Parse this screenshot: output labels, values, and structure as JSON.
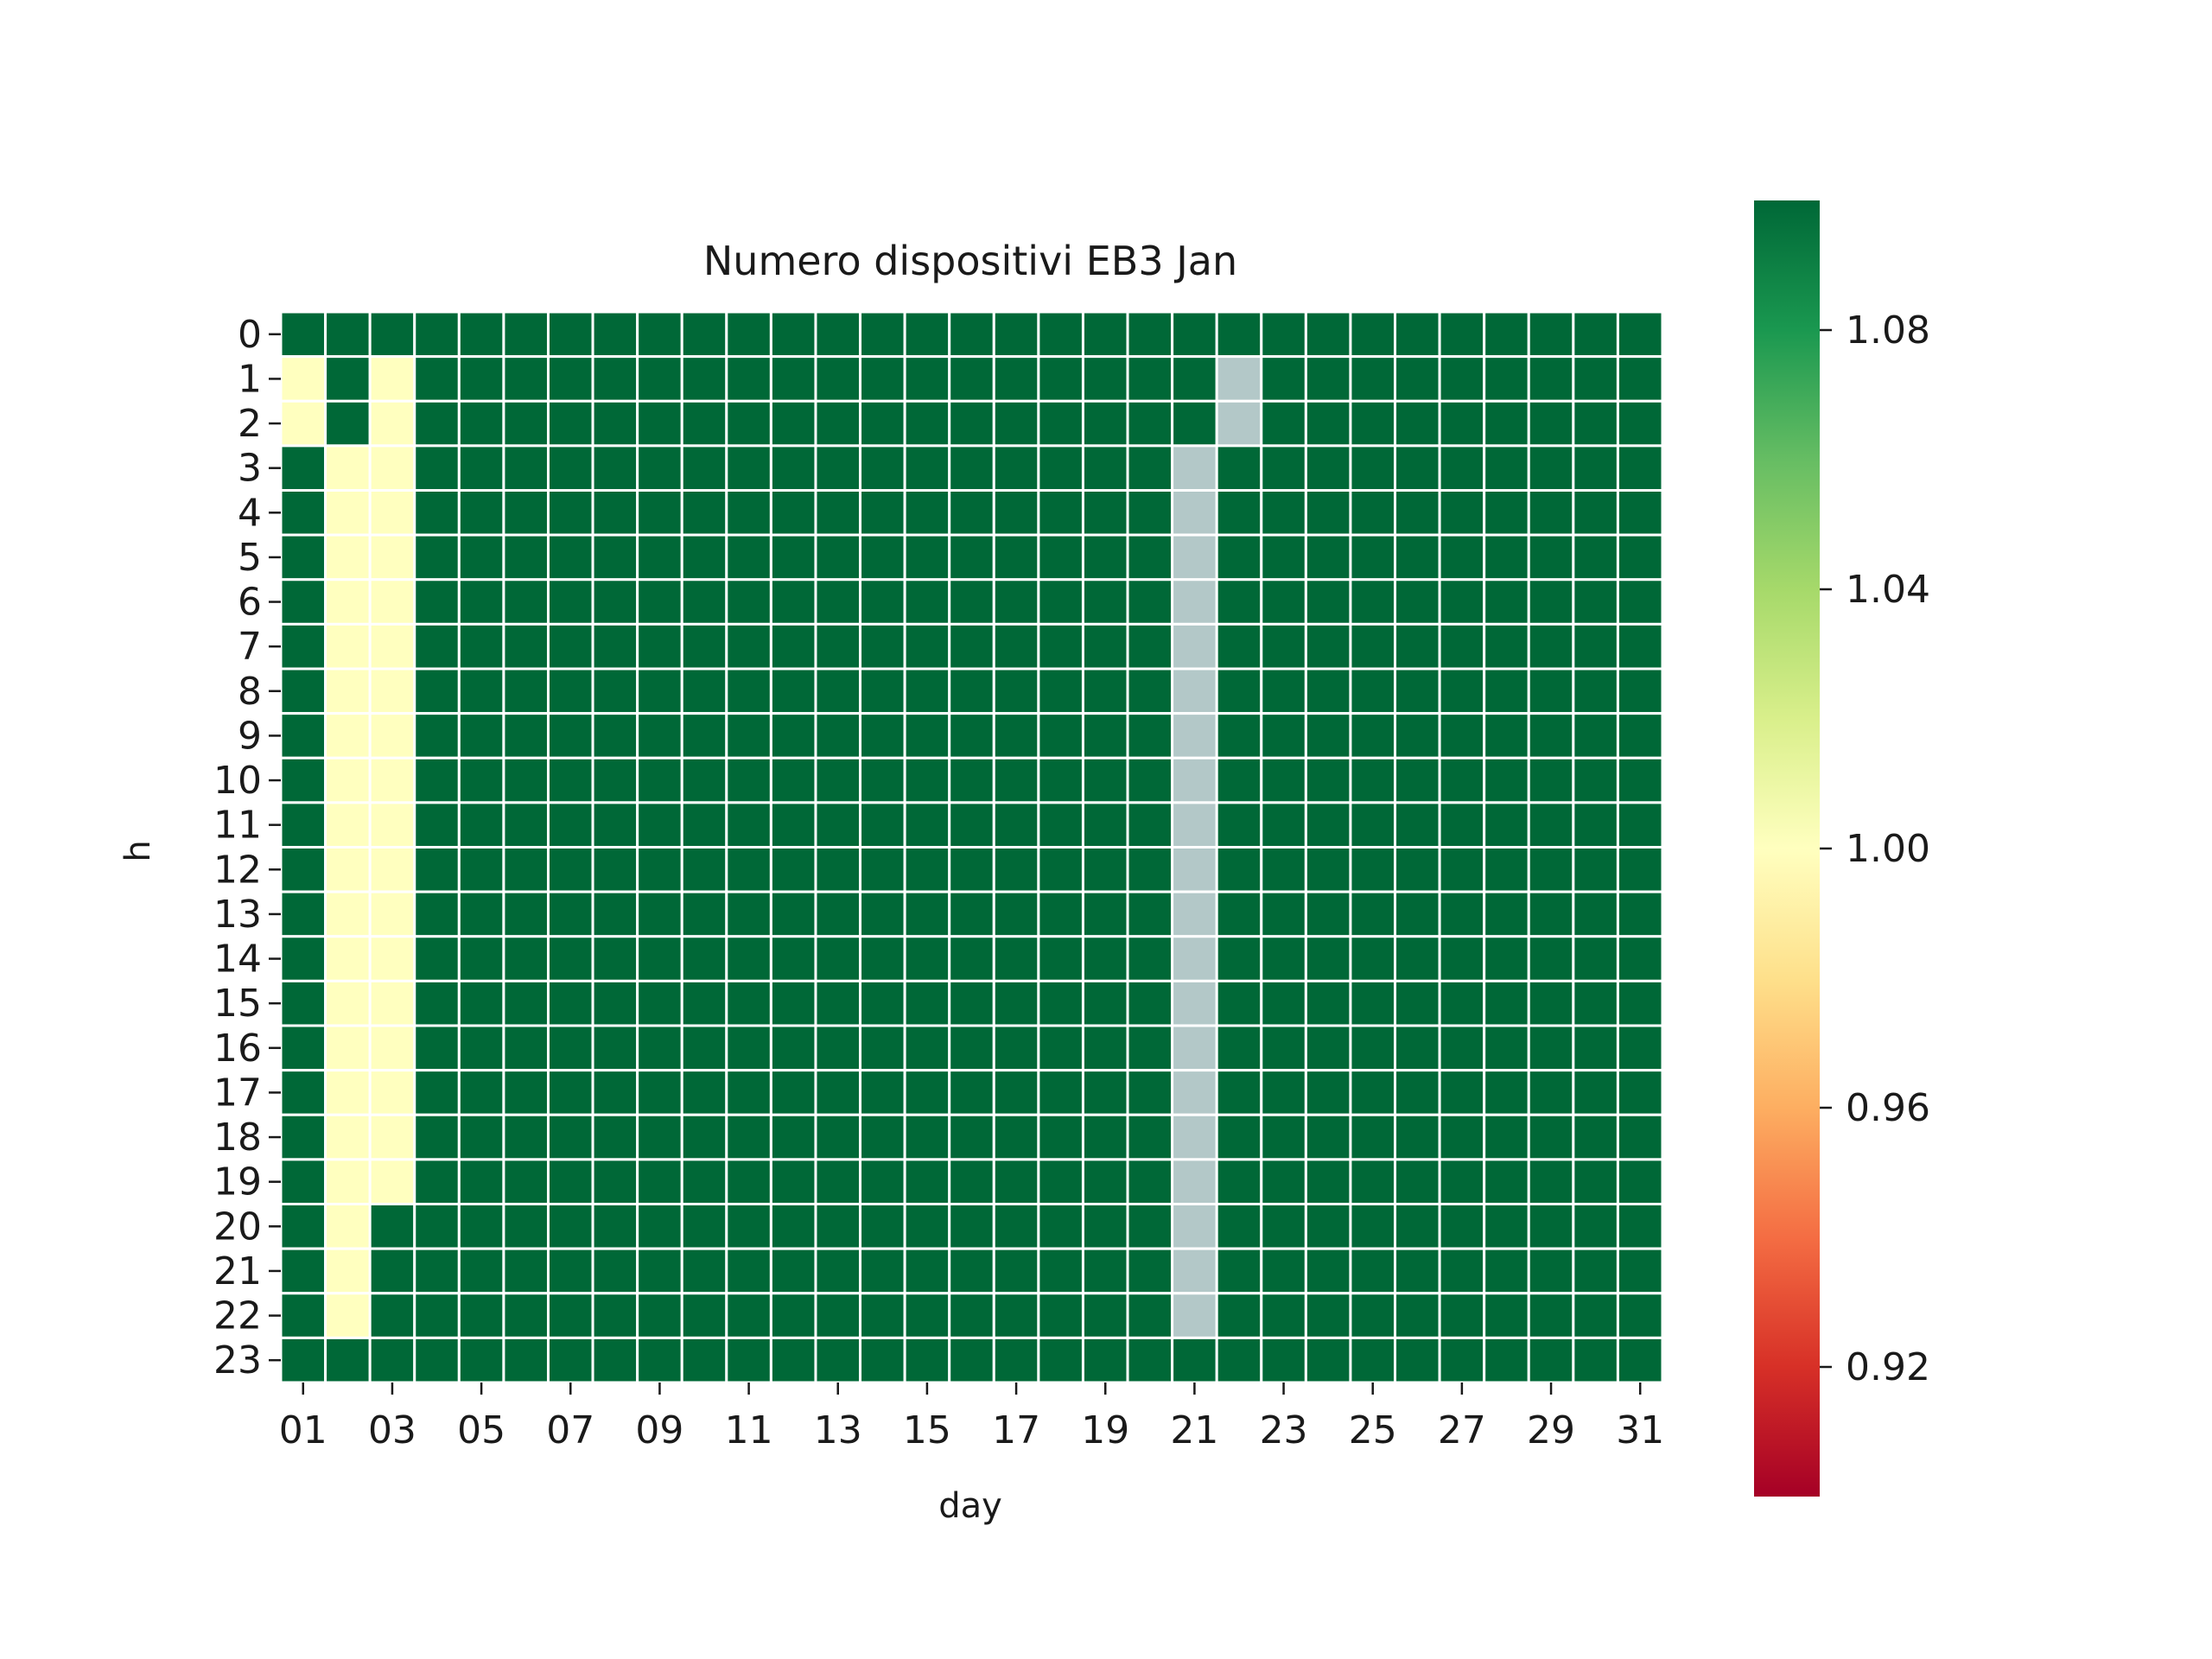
{
  "chart_data": {
    "type": "heatmap",
    "title": "Numero dispositivi EB3 Jan",
    "xlabel": "day",
    "ylabel": "h",
    "x_categories": [
      "01",
      "02",
      "03",
      "04",
      "05",
      "06",
      "07",
      "08",
      "09",
      "10",
      "11",
      "12",
      "13",
      "14",
      "15",
      "16",
      "17",
      "18",
      "19",
      "20",
      "21",
      "22",
      "23",
      "24",
      "25",
      "26",
      "27",
      "28",
      "29",
      "30",
      "31"
    ],
    "x_tick_labels": [
      "01",
      "03",
      "05",
      "07",
      "09",
      "11",
      "13",
      "15",
      "17",
      "19",
      "21",
      "23",
      "25",
      "27",
      "29",
      "31"
    ],
    "y_categories": [
      "0",
      "1",
      "2",
      "3",
      "4",
      "5",
      "6",
      "7",
      "8",
      "9",
      "10",
      "11",
      "12",
      "13",
      "14",
      "15",
      "16",
      "17",
      "18",
      "19",
      "20",
      "21",
      "22",
      "23"
    ],
    "default_value": 1.1,
    "cells": [
      {
        "day": "01",
        "hours": [
          1,
          2
        ],
        "value": 1.0
      },
      {
        "day": "02",
        "hours": [
          3,
          4,
          5,
          6,
          7,
          8,
          9,
          10,
          11,
          12,
          13,
          14,
          15,
          16,
          17,
          18,
          19,
          20,
          21,
          22
        ],
        "value": 1.0
      },
      {
        "day": "03",
        "hours": [
          1,
          2,
          3,
          4,
          5,
          6,
          7,
          8,
          9,
          10,
          11,
          12,
          13,
          14,
          15,
          16,
          17,
          18,
          19
        ],
        "value": 1.0
      },
      {
        "day": "21",
        "hours": [
          3,
          4,
          5,
          6,
          7,
          8,
          9,
          10,
          11,
          12,
          13,
          14,
          15,
          16,
          17,
          18,
          19,
          20,
          21,
          22
        ],
        "value": null
      },
      {
        "day": "22",
        "hours": [
          1,
          2
        ],
        "value": null
      }
    ],
    "missing_color": "#b3c8c8",
    "grid_line_color": "#ffffff",
    "colorbar": {
      "colormap": "RdYlGn",
      "vmin": 0.9,
      "vmax": 1.1,
      "ticks": [
        "0.92",
        "0.96",
        "1.00",
        "1.04",
        "1.08"
      ],
      "stops": [
        "#a50026",
        "#d73027",
        "#f46d43",
        "#fdae61",
        "#fee08b",
        "#ffffbf",
        "#d9ef8b",
        "#a6d96a",
        "#66bd63",
        "#1a9850",
        "#006837"
      ]
    }
  }
}
